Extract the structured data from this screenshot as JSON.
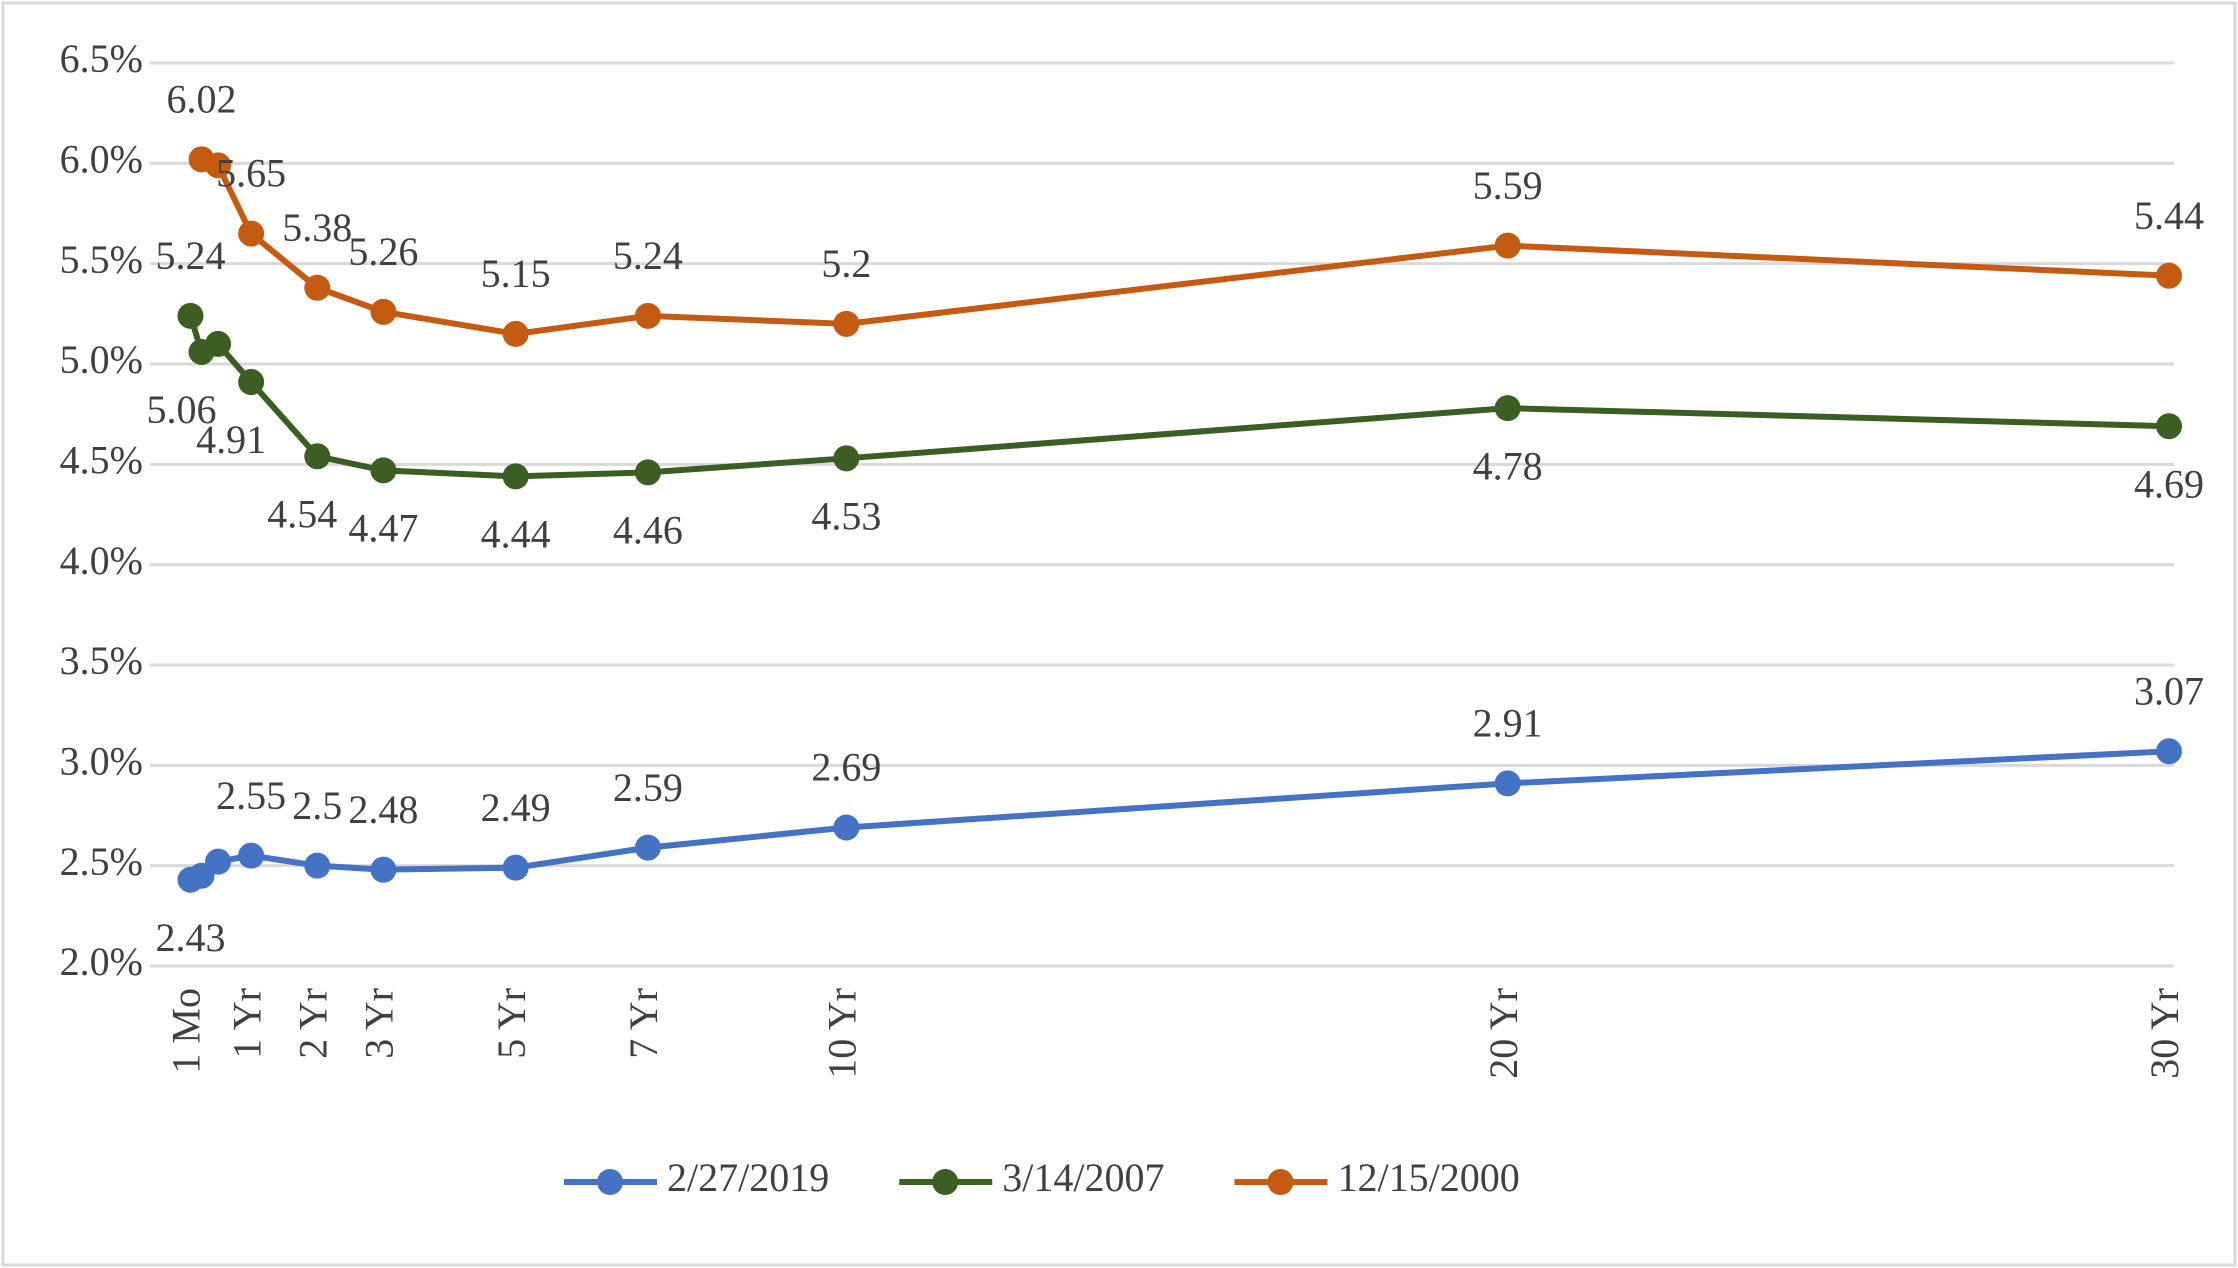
{
  "chart_data": {
    "type": "line",
    "x": [
      0.0833,
      0.25,
      0.5,
      1,
      2,
      3,
      5,
      7,
      10,
      20,
      30
    ],
    "xlim": [
      0,
      30
    ],
    "xticks": [
      {
        "value": 0.0833,
        "label": "1 Mo"
      },
      {
        "value": 1,
        "label": "1 Yr"
      },
      {
        "value": 2,
        "label": "2 Yr"
      },
      {
        "value": 3,
        "label": "3 Yr"
      },
      {
        "value": 5,
        "label": "5 Yr"
      },
      {
        "value": 7,
        "label": "7 Yr"
      },
      {
        "value": 10,
        "label": "10 Yr"
      },
      {
        "value": 20,
        "label": "20 Yr"
      },
      {
        "value": 30,
        "label": "30 Yr"
      }
    ],
    "ylim": [
      2.0,
      6.5
    ],
    "yticks": [
      {
        "value": 2.0,
        "label": "2.0%"
      },
      {
        "value": 2.5,
        "label": "2.5%"
      },
      {
        "value": 3.0,
        "label": "3.0%"
      },
      {
        "value": 3.5,
        "label": "3.5%"
      },
      {
        "value": 4.0,
        "label": "4.0%"
      },
      {
        "value": 4.5,
        "label": "4.5%"
      },
      {
        "value": 5.0,
        "label": "5.0%"
      },
      {
        "value": 5.5,
        "label": "5.5%"
      },
      {
        "value": 6.0,
        "label": "6.0%"
      },
      {
        "value": 6.5,
        "label": "6.5%"
      }
    ],
    "grid": true,
    "legend": "bottom",
    "series": [
      {
        "name": "2/27/2019",
        "color": "#4472c4",
        "values": [
          2.43,
          2.45,
          2.52,
          2.55,
          2.5,
          2.48,
          2.49,
          2.59,
          2.69,
          2.91,
          3.07
        ],
        "value_labels": [
          "2.43",
          null,
          null,
          "2.55",
          "2.5",
          "2.48",
          "2.49",
          "2.59",
          "2.69",
          "2.91",
          "3.07"
        ]
      },
      {
        "name": "3/14/2007",
        "color": "#3b5e22",
        "values": [
          5.24,
          5.06,
          5.1,
          4.91,
          4.54,
          4.47,
          4.44,
          4.46,
          4.53,
          4.78,
          4.69
        ],
        "value_labels": [
          "5.24",
          "5.06",
          null,
          "4.91",
          "4.54",
          "4.47",
          "4.44",
          "4.46",
          "4.53",
          "4.78",
          "4.69"
        ]
      },
      {
        "name": "12/15/2000",
        "color": "#c55a11",
        "values": [
          null,
          6.02,
          5.99,
          5.65,
          5.38,
          5.26,
          5.15,
          5.24,
          5.2,
          5.59,
          5.44
        ],
        "value_labels": [
          null,
          "6.02",
          null,
          "5.65",
          "5.38",
          "5.26",
          "5.15",
          "5.24",
          "5.2",
          "5.59",
          "5.44"
        ]
      }
    ]
  }
}
